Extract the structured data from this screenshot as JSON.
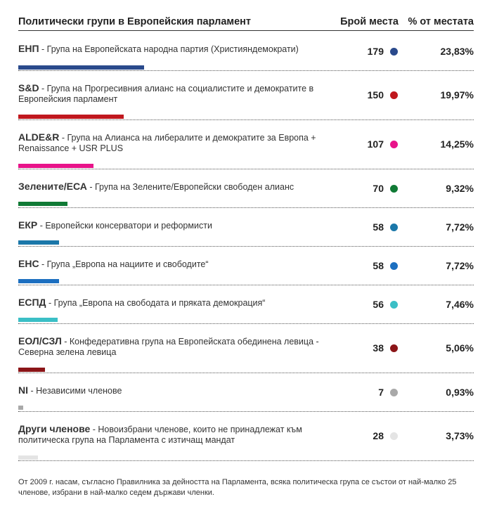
{
  "header": {
    "title": "Политически групи в Европейския парламент",
    "seats_label": "Брой места",
    "pct_label": "% от местата"
  },
  "chart_data": {
    "type": "bar",
    "title": "Политически групи в Европейския парламент",
    "bar_scale_max": 720,
    "series": [
      {
        "abbr": "ЕНП",
        "name": " - Група на Европейската народна партия (Християндемократи)",
        "seats": 179,
        "seats_text": "179",
        "pct": 23.83,
        "pct_text": "23,83%",
        "color": "#2a4a8c"
      },
      {
        "abbr": "S&D",
        "name": " - Група на Прогресивния алианс на социалистите и демократите в Европейския парламент",
        "seats": 150,
        "seats_text": "150",
        "pct": 19.97,
        "pct_text": "19,97%",
        "color": "#c0181e"
      },
      {
        "abbr": "ALDE&R",
        "name": " - Група на Алианса на либералите и демократите за Европа + Renaissance + USR PLUS",
        "seats": 107,
        "seats_text": "107",
        "pct": 14.25,
        "pct_text": "14,25%",
        "color": "#e8148a"
      },
      {
        "abbr": "Зелените/ЕСА",
        "name": " - Група на Зелените/Европейски свободен алианс",
        "seats": 70,
        "seats_text": "70",
        "pct": 9.32,
        "pct_text": "9,32%",
        "color": "#107a35"
      },
      {
        "abbr": "ЕКР",
        "name": " - Европейски консерватори и реформисти",
        "seats": 58,
        "seats_text": "58",
        "pct": 7.72,
        "pct_text": "7,72%",
        "color": "#1b77a9"
      },
      {
        "abbr": "ЕНС",
        "name": " - Група „Европа на нациите и свободите“",
        "seats": 58,
        "seats_text": "58",
        "pct": 7.72,
        "pct_text": "7,72%",
        "color": "#1c6fc0"
      },
      {
        "abbr": "ЕСПД",
        "name": " - Група „Европа на свободата и пряката демокрация“",
        "seats": 56,
        "seats_text": "56",
        "pct": 7.46,
        "pct_text": "7,46%",
        "color": "#3bbfc6"
      },
      {
        "abbr": "ЕОЛ/СЗЛ",
        "name": " - Конфедеративна група на Европейската обединена левица - Северна зелена левица",
        "seats": 38,
        "seats_text": "38",
        "pct": 5.06,
        "pct_text": "5,06%",
        "color": "#8b1518"
      },
      {
        "abbr": "NI",
        "name": " - Независими членове",
        "seats": 7,
        "seats_text": "7",
        "pct": 0.93,
        "pct_text": "0,93%",
        "color": "#a9a9a9"
      },
      {
        "abbr": "Други членове",
        "name": " - Новоизбрани членове, които не принадлежат към политическа група на Парламента с изтичащ мандат",
        "seats": 28,
        "seats_text": "28",
        "pct": 3.73,
        "pct_text": "3,73%",
        "color": "#e4e4e4"
      }
    ]
  },
  "footer": {
    "note": "От 2009 г. насам, съгласно Правилника за дейността на Парламента, всяка политическа група се състои от най-малко 25 членове, избрани в най-малко седем държави членки."
  }
}
